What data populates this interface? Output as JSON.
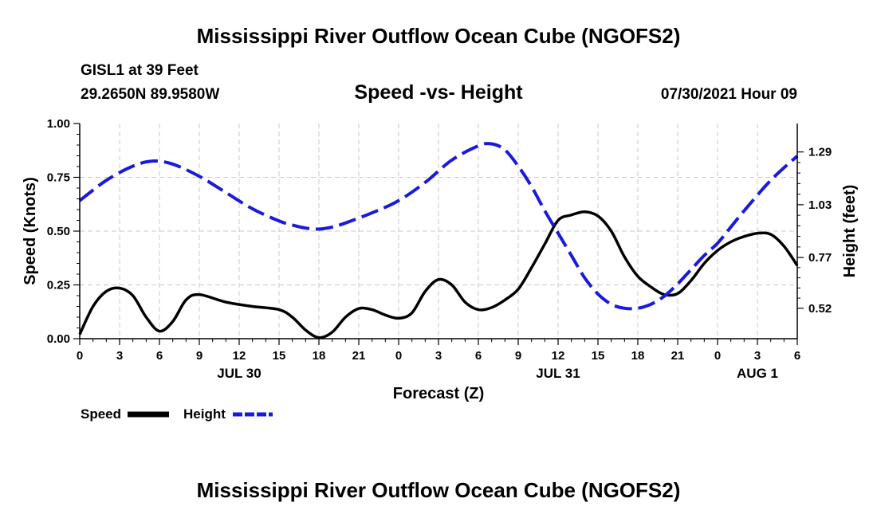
{
  "header": {
    "title": "Mississippi River Outflow Ocean Cube (NGOFS2)",
    "station": "GISL1 at 39 Feet",
    "coords": "29.2650N  89.9580W",
    "subtitle": "Speed -vs- Height",
    "timestamp": "07/30/2021 Hour 09"
  },
  "footer": {
    "title": "Mississippi River Outflow Ocean Cube (NGOFS2)"
  },
  "colors": {
    "speed": "#000000",
    "height": "#1a1adc",
    "grid": "#c8c8c8"
  },
  "chart_data": {
    "type": "line",
    "title": "Speed -vs- Height",
    "xlabel": "Forecast (Z)",
    "ylabel": "Speed (Knots)",
    "y2label": "Height (feet)",
    "x_range": [
      0,
      54
    ],
    "x_ticks": [
      0,
      3,
      6,
      9,
      12,
      15,
      18,
      21,
      24,
      27,
      30,
      33,
      36,
      39,
      42,
      45,
      48,
      51,
      54
    ],
    "x_tick_labels": [
      "0",
      "3",
      "6",
      "9",
      "12",
      "15",
      "18",
      "21",
      "0",
      "3",
      "6",
      "9",
      "12",
      "15",
      "18",
      "21",
      "0",
      "3",
      "6"
    ],
    "date_labels": [
      {
        "x": 12,
        "label": "JUL 30"
      },
      {
        "x": 36,
        "label": "JUL 31"
      },
      {
        "x": 51,
        "label": "AUG 1"
      }
    ],
    "ylim": [
      0,
      1.0
    ],
    "y_ticks": [
      0,
      0.25,
      0.5,
      0.75,
      1.0
    ],
    "y_tick_labels": [
      "0.00",
      "0.25",
      "0.50",
      "0.75",
      "1.00"
    ],
    "y2lim": [
      0.37,
      1.43
    ],
    "y2_ticks": [
      0.52,
      0.77,
      1.03,
      1.29
    ],
    "y2_tick_labels": [
      "0.52",
      "0.77",
      "1.03",
      "1.29"
    ],
    "series": [
      {
        "name": "Speed",
        "axis": "left",
        "style": "solid",
        "x": [
          0,
          1,
          2,
          3,
          4,
          5,
          6,
          7,
          8,
          9,
          11,
          13,
          15,
          16,
          17,
          18,
          19,
          20,
          21,
          22,
          23,
          24,
          25,
          26,
          27,
          28,
          29,
          30,
          31,
          32,
          33,
          34,
          35,
          36,
          37,
          38,
          39,
          40,
          41,
          42,
          43,
          44,
          45,
          46,
          47,
          48,
          49,
          50,
          51,
          52,
          53,
          54
        ],
        "values": [
          0.02,
          0.15,
          0.22,
          0.235,
          0.2,
          0.1,
          0.035,
          0.08,
          0.18,
          0.205,
          0.17,
          0.15,
          0.135,
          0.1,
          0.04,
          0.005,
          0.03,
          0.1,
          0.14,
          0.135,
          0.11,
          0.095,
          0.12,
          0.22,
          0.275,
          0.25,
          0.17,
          0.135,
          0.145,
          0.18,
          0.23,
          0.33,
          0.44,
          0.55,
          0.575,
          0.59,
          0.57,
          0.5,
          0.38,
          0.29,
          0.24,
          0.205,
          0.21,
          0.27,
          0.35,
          0.41,
          0.45,
          0.475,
          0.49,
          0.485,
          0.43,
          0.34
        ]
      },
      {
        "name": "Height",
        "axis": "right",
        "style": "dashed",
        "x": [
          0,
          2,
          4,
          5.5,
          7,
          9,
          11,
          13,
          15,
          16,
          17,
          18,
          19,
          20,
          22,
          24,
          26,
          28,
          30,
          31,
          32,
          33,
          34,
          35,
          36,
          37,
          38,
          39,
          40,
          41,
          42,
          43,
          44,
          45,
          46,
          47,
          48,
          49,
          50,
          52,
          54
        ],
        "values": [
          1.05,
          1.15,
          1.22,
          1.245,
          1.23,
          1.17,
          1.09,
          1.01,
          0.95,
          0.93,
          0.915,
          0.91,
          0.92,
          0.94,
          0.99,
          1.05,
          1.14,
          1.25,
          1.32,
          1.33,
          1.3,
          1.22,
          1.12,
          1.0,
          0.89,
          0.78,
          0.67,
          0.59,
          0.54,
          0.52,
          0.52,
          0.54,
          0.58,
          0.64,
          0.71,
          0.78,
          0.84,
          0.92,
          1.0,
          1.15,
          1.27
        ]
      }
    ],
    "legend": [
      {
        "label": "Speed",
        "style": "solid"
      },
      {
        "label": "Height",
        "style": "dashed"
      }
    ]
  }
}
